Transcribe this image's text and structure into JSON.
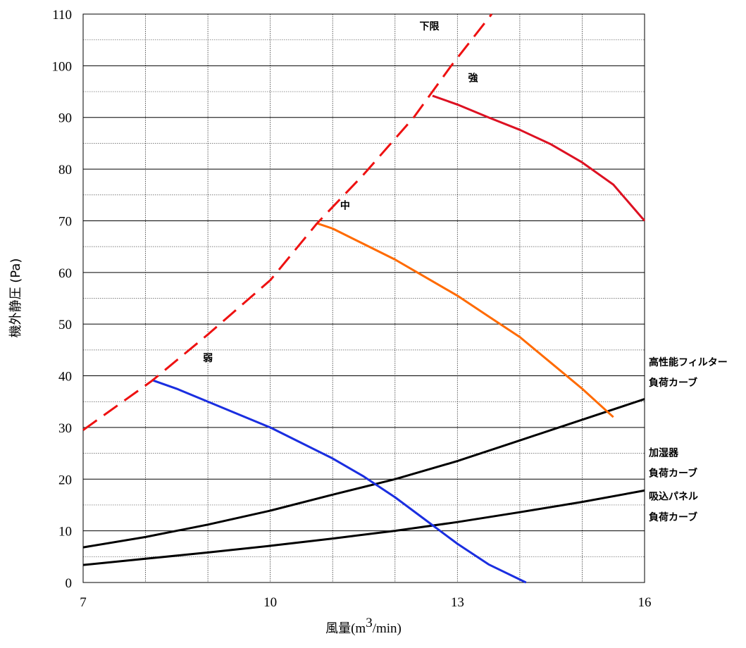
{
  "chart_data": {
    "type": "line",
    "title": "",
    "xlabel": "風量(m³/min)",
    "xlabel_parts": {
      "main": "風量",
      "unit_pre": "(m",
      "unit_sup": "3",
      "unit_post": "/min)"
    },
    "ylabel": "機外静圧 (Pa)",
    "xlim": [
      7,
      16
    ],
    "ylim": [
      0,
      110
    ],
    "x_ticks": [
      7,
      10,
      13,
      16
    ],
    "y_ticks": [
      0,
      10,
      20,
      30,
      40,
      50,
      60,
      70,
      80,
      90,
      100,
      110
    ],
    "grid": true,
    "legend": "none",
    "series": [
      {
        "key": "lower",
        "color": "#ee1111",
        "dashed": true,
        "points": [
          [
            7,
            29.5
          ],
          [
            8.1,
            39
          ],
          [
            9,
            48
          ],
          [
            10,
            58.5
          ],
          [
            10.75,
            69.5
          ],
          [
            11.5,
            79
          ],
          [
            12.3,
            90
          ],
          [
            12.9,
            100
          ],
          [
            13.55,
            110
          ]
        ]
      },
      {
        "key": "strong",
        "color": "#dd1122",
        "dashed": false,
        "points": [
          [
            12.6,
            94.2
          ],
          [
            13,
            92.5
          ],
          [
            13.5,
            90
          ],
          [
            14,
            87.6
          ],
          [
            14.5,
            84.8
          ],
          [
            15,
            81.3
          ],
          [
            15.5,
            77
          ],
          [
            16,
            70
          ]
        ]
      },
      {
        "key": "medium",
        "color": "#ff6a00",
        "dashed": false,
        "points": [
          [
            10.75,
            69.5
          ],
          [
            11,
            68.5
          ],
          [
            11.5,
            65.5
          ],
          [
            12,
            62.5
          ],
          [
            12.5,
            59
          ],
          [
            13,
            55.5
          ],
          [
            13.5,
            51.5
          ],
          [
            14,
            47.5
          ],
          [
            14.5,
            42.5
          ],
          [
            15,
            37.5
          ],
          [
            15.5,
            32
          ]
        ]
      },
      {
        "key": "weak",
        "color": "#1a2ee0",
        "dashed": false,
        "points": [
          [
            8.1,
            39.2
          ],
          [
            8.5,
            37.5
          ],
          [
            9,
            35
          ],
          [
            9.5,
            32.5
          ],
          [
            10,
            30
          ],
          [
            10.5,
            27
          ],
          [
            11,
            24
          ],
          [
            11.5,
            20.5
          ],
          [
            12,
            16.5
          ],
          [
            12.5,
            12
          ],
          [
            13,
            7.5
          ],
          [
            13.5,
            3.5
          ],
          [
            14.1,
            0
          ]
        ]
      },
      {
        "key": "filter",
        "color": "#000000",
        "dashed": false,
        "points": [
          [
            7,
            6.8
          ],
          [
            8,
            8.8
          ],
          [
            9,
            11.2
          ],
          [
            10,
            13.9
          ],
          [
            11,
            17
          ],
          [
            12,
            20
          ],
          [
            13,
            23.5
          ],
          [
            14,
            27.5
          ],
          [
            15,
            31.5
          ],
          [
            16,
            35.5
          ]
        ]
      },
      {
        "key": "humidifier",
        "color": "#000000",
        "dashed": false,
        "points": [
          [
            7,
            3.4
          ],
          [
            8,
            4.6
          ],
          [
            9,
            5.8
          ],
          [
            10,
            7.1
          ],
          [
            11,
            8.5
          ],
          [
            12,
            10
          ],
          [
            13,
            11.7
          ],
          [
            14,
            13.6
          ],
          [
            15,
            15.6
          ],
          [
            16,
            17.8
          ]
        ]
      }
    ],
    "annotations": [
      {
        "text": "下限",
        "x": 12.55,
        "y": 107
      },
      {
        "text": "強",
        "x": 13.25,
        "y": 97
      },
      {
        "text": "中",
        "x": 11.2,
        "y": 72.3
      },
      {
        "text": "弱",
        "x": 9,
        "y": 42.8
      }
    ],
    "side_labels": [
      {
        "line1": "高性能フィルター",
        "line2": "負荷カーブ",
        "y1": 42,
        "y2": 38
      },
      {
        "line1": "加湿器",
        "line2": "負荷カーブ",
        "y1": 24.5,
        "y2": 20.5
      },
      {
        "line1": "吸込パネル",
        "line2": "負荷カーブ",
        "y1": 16,
        "y2": 12
      }
    ]
  }
}
